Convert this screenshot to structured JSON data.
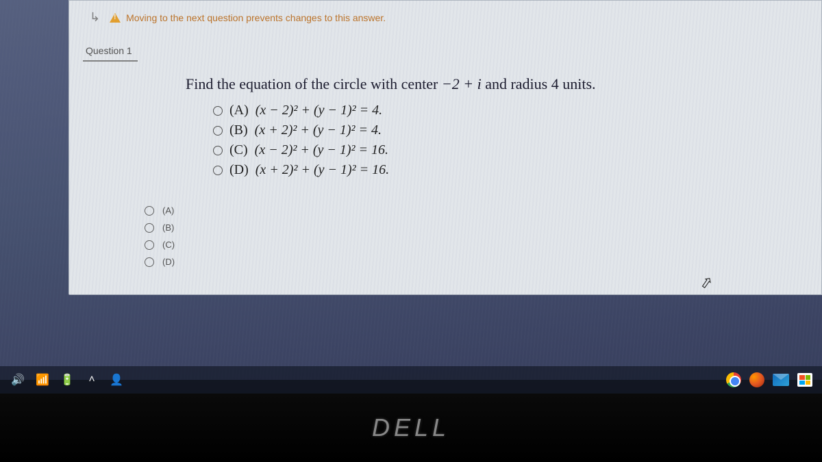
{
  "warning": {
    "text": "Moving to the next question prevents changes to this answer."
  },
  "question": {
    "label": "Question 1",
    "prompt_prefix": "Find the equation of the circle with center ",
    "prompt_center": "−2 + i",
    "prompt_suffix": " and radius 4 units.",
    "image_options": [
      {
        "letter": "(A)",
        "expr": "(x − 2)² + (y − 1)² = 4."
      },
      {
        "letter": "(B)",
        "expr": "(x + 2)² + (y − 1)² = 4."
      },
      {
        "letter": "(C)",
        "expr": "(x − 2)² + (y − 1)² = 16."
      },
      {
        "letter": "(D)",
        "expr": "(x + 2)² + (y − 1)² = 16."
      }
    ]
  },
  "answers": [
    {
      "label": "(A)"
    },
    {
      "label": "(B)"
    },
    {
      "label": "(C)"
    },
    {
      "label": "(D)"
    }
  ],
  "monitor": {
    "brand": "DELL"
  },
  "colors": {
    "content_bg": "#eef2f6",
    "warning_text": "#c77a2c",
    "question_text": "#1a1a2e"
  }
}
